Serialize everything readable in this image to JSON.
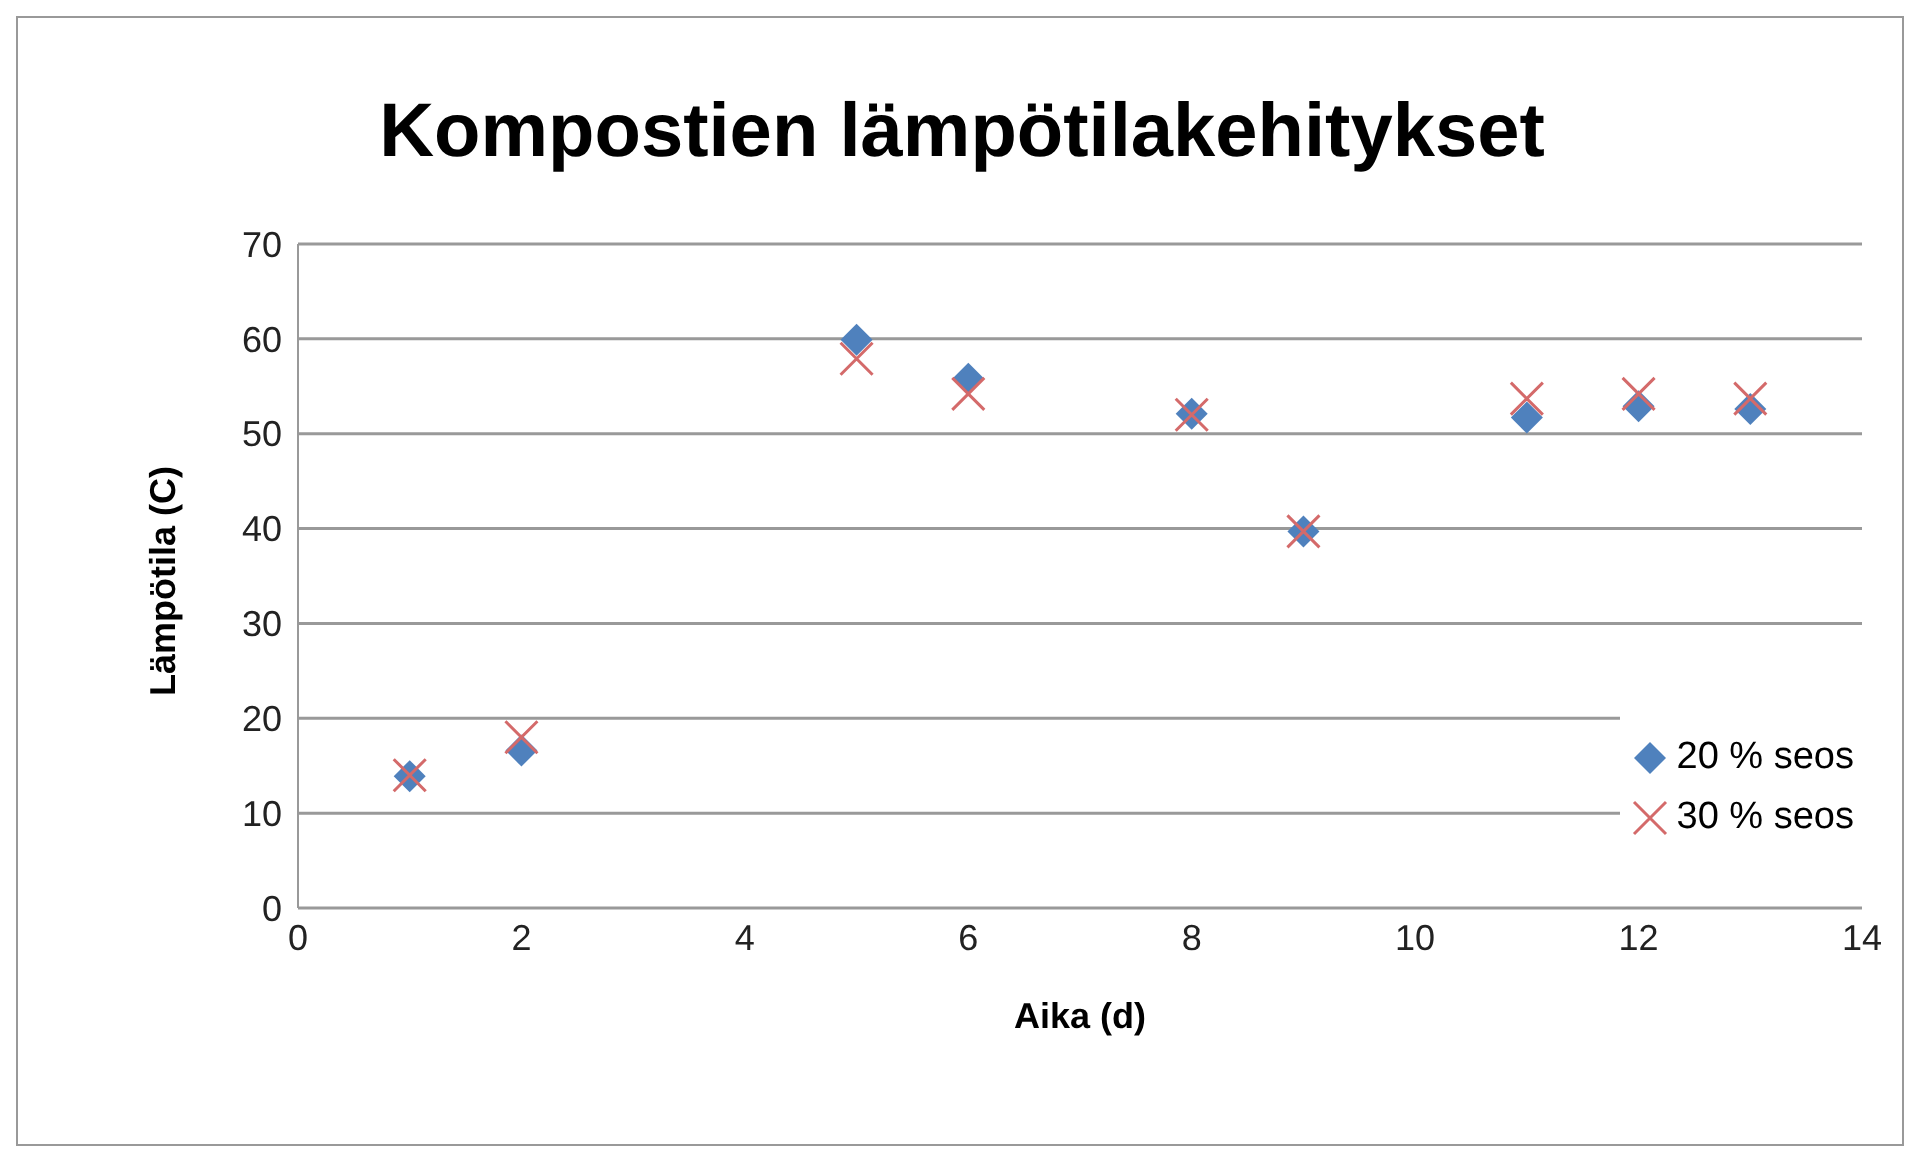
{
  "chart_data": {
    "type": "scatter",
    "title": "Kompostien lämpötilakehitykset",
    "xlabel": "Aika (d)",
    "ylabel": "Lämpötila (C)",
    "x": [
      1,
      2,
      5,
      6,
      8,
      9,
      11,
      12,
      13
    ],
    "series": [
      {
        "name": "20 % seos",
        "color": "#4f81bd",
        "marker": "diamond",
        "values": [
          13.9,
          16.6,
          59.9,
          55.8,
          52.1,
          39.7,
          51.7,
          52.9,
          52.6
        ]
      },
      {
        "name": "30 % seos",
        "color": "#d46a6a",
        "marker": "cross",
        "values": [
          14,
          18,
          57.9,
          54.2,
          52,
          39.7,
          53.7,
          54.2,
          53.7
        ]
      }
    ],
    "xlim": [
      0,
      14
    ],
    "xticks": [
      0,
      2,
      4,
      6,
      8,
      10,
      12,
      14
    ],
    "ylim": [
      0,
      70
    ],
    "yticks": [
      0,
      10,
      20,
      30,
      40,
      50,
      60,
      70
    ],
    "grid": "y",
    "legend": "right"
  }
}
